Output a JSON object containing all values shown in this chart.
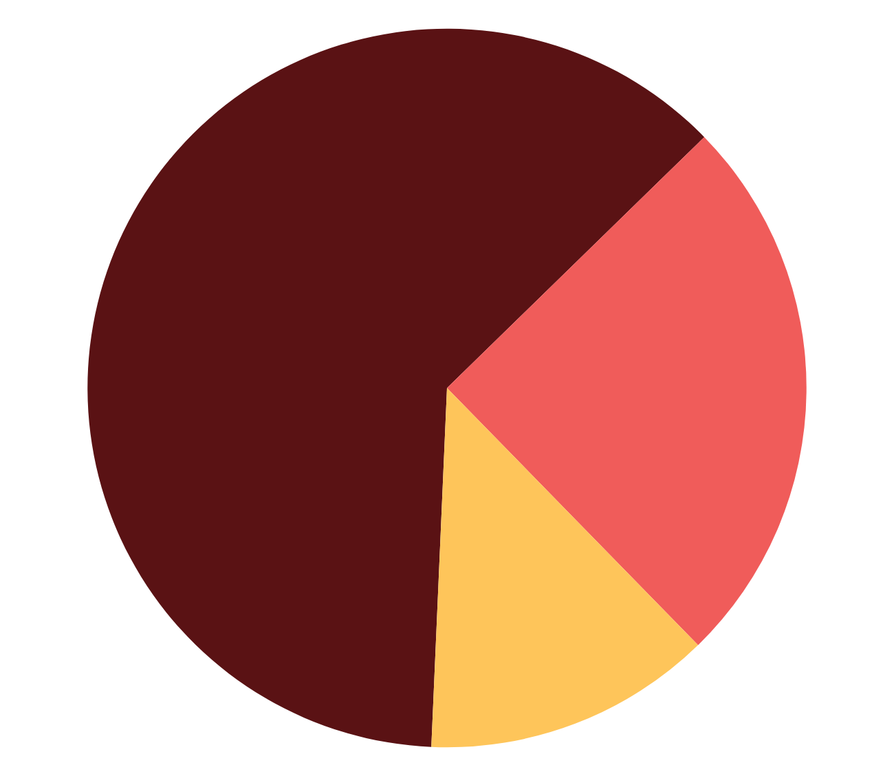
{
  "chart_data": {
    "type": "pie",
    "categories": [
      null,
      null,
      null
    ],
    "values": [
      62,
      25,
      13
    ],
    "colors": [
      "#5a1214",
      "#f05c5a",
      "#fec55a"
    ]
  }
}
